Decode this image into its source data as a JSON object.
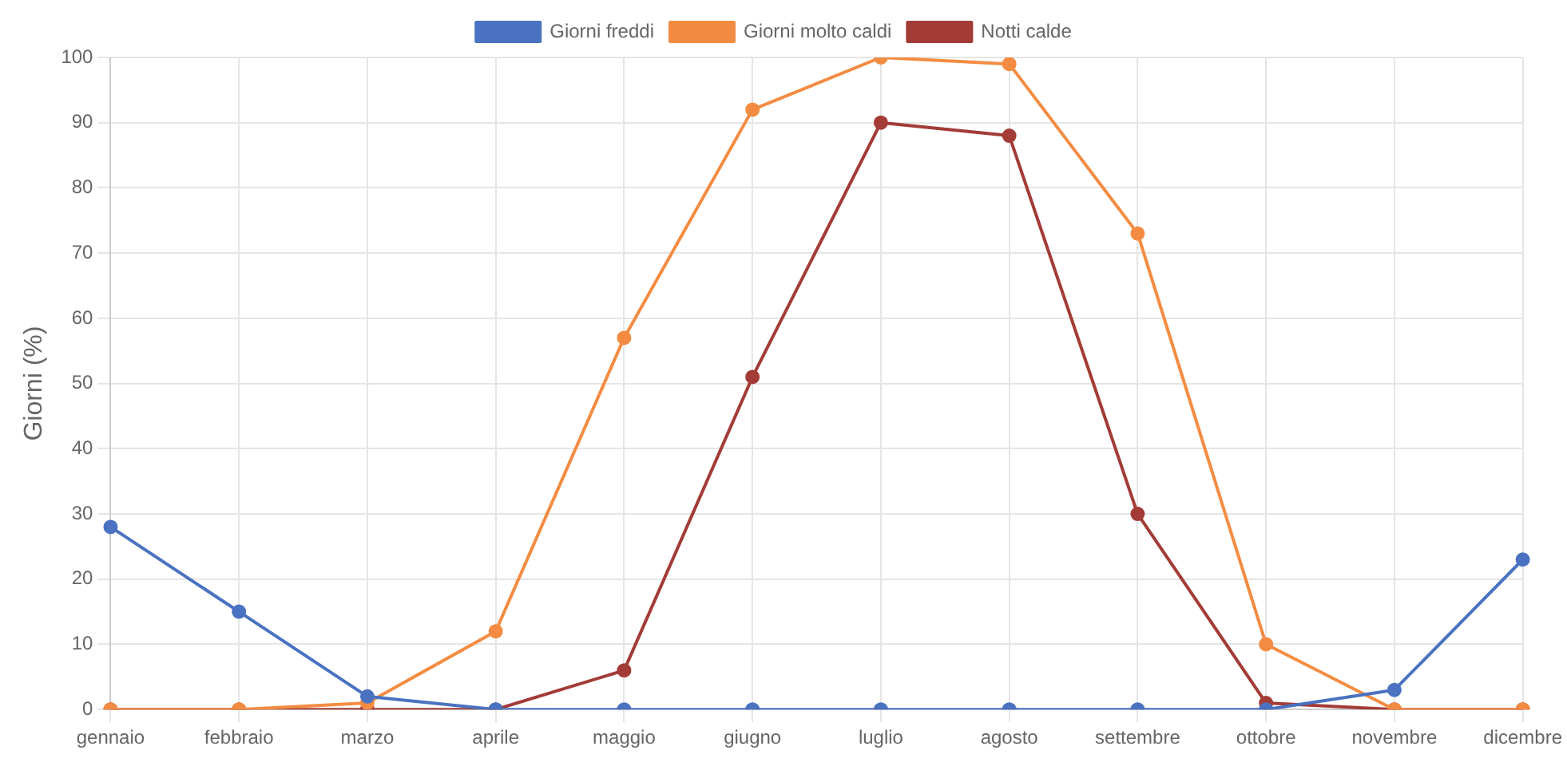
{
  "chart_data": {
    "type": "line",
    "ylabel": "Giorni (%)",
    "categories": [
      "gennaio",
      "febbraio",
      "marzo",
      "aprile",
      "maggio",
      "giugno",
      "luglio",
      "agosto",
      "settembre",
      "ottobre",
      "novembre",
      "dicembre"
    ],
    "series": [
      {
        "name": "Giorni freddi",
        "color": "#4a72c1",
        "values": [
          28,
          15,
          2,
          0,
          0,
          0,
          0,
          0,
          0,
          0,
          3,
          23
        ]
      },
      {
        "name": "Giorni molto caldi",
        "color": "#f38c42",
        "values": [
          0,
          0,
          1,
          12,
          57,
          92,
          100,
          99,
          73,
          10,
          0,
          0
        ]
      },
      {
        "name": "Notti calde",
        "color": "#a33b36",
        "values": [
          0,
          0,
          0,
          0,
          6,
          51,
          90,
          88,
          30,
          1,
          0,
          0
        ]
      }
    ],
    "ylim": [
      0,
      100
    ],
    "yticks": [
      0,
      10,
      20,
      30,
      40,
      50,
      60,
      70,
      80,
      90,
      100
    ],
    "grid": true,
    "legend": "top",
    "marker": "circle",
    "line_style": "solid"
  }
}
